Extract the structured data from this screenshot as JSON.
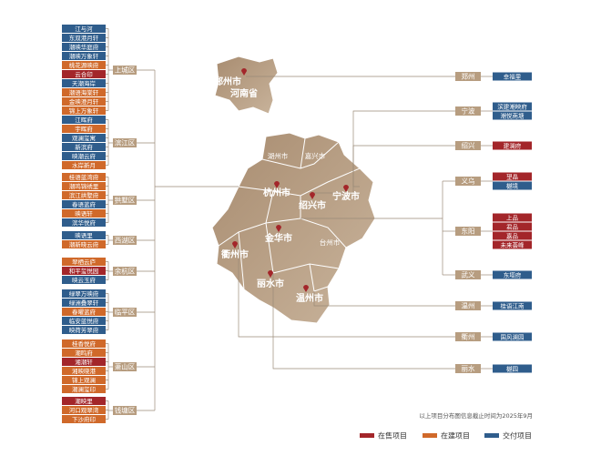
{
  "left_districts": [
    {
      "name": "上城区",
      "projects": [
        {
          "name": "江与河",
          "color": "#2f5d8c"
        },
        {
          "name": "东双港月轩",
          "color": "#2f5d8c"
        },
        {
          "name": "潮映华庭府",
          "color": "#2f5d8c"
        },
        {
          "name": "潮映万象轩",
          "color": "#2f5d8c"
        },
        {
          "name": "桃花源映府",
          "color": "#d0692a"
        },
        {
          "name": "云合印",
          "color": "#a3262a"
        },
        {
          "name": "天潮海岸",
          "color": "#2f5d8c"
        },
        {
          "name": "潮语海棠轩",
          "color": "#d0692a"
        },
        {
          "name": "金映澄月轩",
          "color": "#d0692a"
        },
        {
          "name": "锦上万象轩",
          "color": "#d0692a"
        }
      ]
    },
    {
      "name": "滨江区",
      "projects": [
        {
          "name": "江晖府",
          "color": "#2f5d8c"
        },
        {
          "name": "宇晖府",
          "color": "#d0692a"
        },
        {
          "name": "观澜玺寓",
          "color": "#2f5d8c"
        },
        {
          "name": "新滨府",
          "color": "#2f5d8c"
        },
        {
          "name": "映潮云府",
          "color": "#2f5d8c"
        },
        {
          "name": "水岸新月",
          "color": "#d0692a"
        }
      ]
    },
    {
      "name": "拱墅区",
      "projects": [
        {
          "name": "桂语蓝湾府",
          "color": "#d0692a"
        },
        {
          "name": "潮鸣锦绣里",
          "color": "#d0692a"
        },
        {
          "name": "滨江拱墅府",
          "color": "#d0692a"
        },
        {
          "name": "春语蓝府",
          "color": "#2f5d8c"
        },
        {
          "name": "映语轩",
          "color": "#d0692a"
        },
        {
          "name": "滨华悦府",
          "color": "#2f5d8c"
        }
      ]
    },
    {
      "name": "西湖区",
      "projects": [
        {
          "name": "映语里",
          "color": "#2f5d8c"
        },
        {
          "name": "潮新晓云府",
          "color": "#d0692a"
        }
      ]
    },
    {
      "name": "余杭区",
      "projects": [
        {
          "name": "翠栖云庐",
          "color": "#d0692a"
        },
        {
          "name": "和平玺悦园",
          "color": "#a3262a"
        },
        {
          "name": "映云玉府",
          "color": "#2f5d8c"
        }
      ]
    },
    {
      "name": "临平区",
      "projects": [
        {
          "name": "绿翠万映府",
          "color": "#2f5d8c"
        },
        {
          "name": "绿洲叠翠轩",
          "color": "#2f5d8c"
        },
        {
          "name": "春曜蓝府",
          "color": "#d0692a"
        },
        {
          "name": "临安蓝悦府",
          "color": "#2f5d8c"
        },
        {
          "name": "映荷芳翠府",
          "color": "#2f5d8c"
        }
      ]
    },
    {
      "name": "萧山区",
      "projects": [
        {
          "name": "桂香悦府",
          "color": "#d0692a"
        },
        {
          "name": "潮鸣府",
          "color": "#d0692a"
        },
        {
          "name": "湘潮轩",
          "color": "#a3262a"
        },
        {
          "name": "湘映晓港",
          "color": "#d0692a"
        },
        {
          "name": "锦上观澜",
          "color": "#d0692a"
        },
        {
          "name": "潮澜玺印",
          "color": "#d0692a"
        }
      ]
    },
    {
      "name": "钱塘区",
      "projects": [
        {
          "name": "潮映里",
          "color": "#a3262a"
        },
        {
          "name": "河口观翠湾",
          "color": "#d0692a"
        },
        {
          "name": "下沙府印",
          "color": "#d0692a"
        }
      ]
    }
  ],
  "right_cities": [
    {
      "name": "郑州",
      "projects": [
        {
          "name": "幸福里",
          "color": "#2f5d8c"
        }
      ]
    },
    {
      "name": "宁波",
      "projects": [
        {
          "name": "滨建潮映府",
          "color": "#2f5d8c"
        },
        {
          "name": "潮悦南塘",
          "color": "#2f5d8c"
        }
      ]
    },
    {
      "name": "绍兴",
      "projects": [
        {
          "name": "建澜府",
          "color": "#a3262a"
        }
      ]
    },
    {
      "name": "义乌",
      "projects": [
        {
          "name": "望晶",
          "color": "#a3262a"
        },
        {
          "name": "樾境",
          "color": "#2f5d8c"
        }
      ]
    },
    {
      "name": "东阳",
      "projects": [
        {
          "name": "上品",
          "color": "#a3262a"
        },
        {
          "name": "君品",
          "color": "#a3262a"
        },
        {
          "name": "嘉品",
          "color": "#a3262a"
        },
        {
          "name": "未来荟峰",
          "color": "#a3262a"
        }
      ]
    },
    {
      "name": "武义",
      "projects": [
        {
          "name": "东塔府",
          "color": "#2f5d8c"
        }
      ]
    },
    {
      "name": "温州",
      "projects": [
        {
          "name": "桂语江南",
          "color": "#2f5d8c"
        }
      ]
    },
    {
      "name": "衢州",
      "projects": [
        {
          "name": "国风澜园",
          "color": "#2f5d8c"
        }
      ]
    },
    {
      "name": "丽水",
      "projects": [
        {
          "name": "樾园",
          "color": "#2f5d8c"
        }
      ]
    }
  ],
  "map_labels": [
    "郑州市",
    "河南省",
    "湖州市",
    "嘉兴市",
    "杭州市",
    "绍兴市",
    "宁波市",
    "金华市",
    "台州市",
    "衢州市",
    "丽水市",
    "温州市"
  ],
  "note": "以上项目分布图信息截止时间为2025年9月",
  "legend": [
    {
      "label": "在售项目",
      "color": "#a3262a"
    },
    {
      "label": "在建项目",
      "color": "#d0692a"
    },
    {
      "label": "交付项目",
      "color": "#2f5d8c"
    }
  ]
}
